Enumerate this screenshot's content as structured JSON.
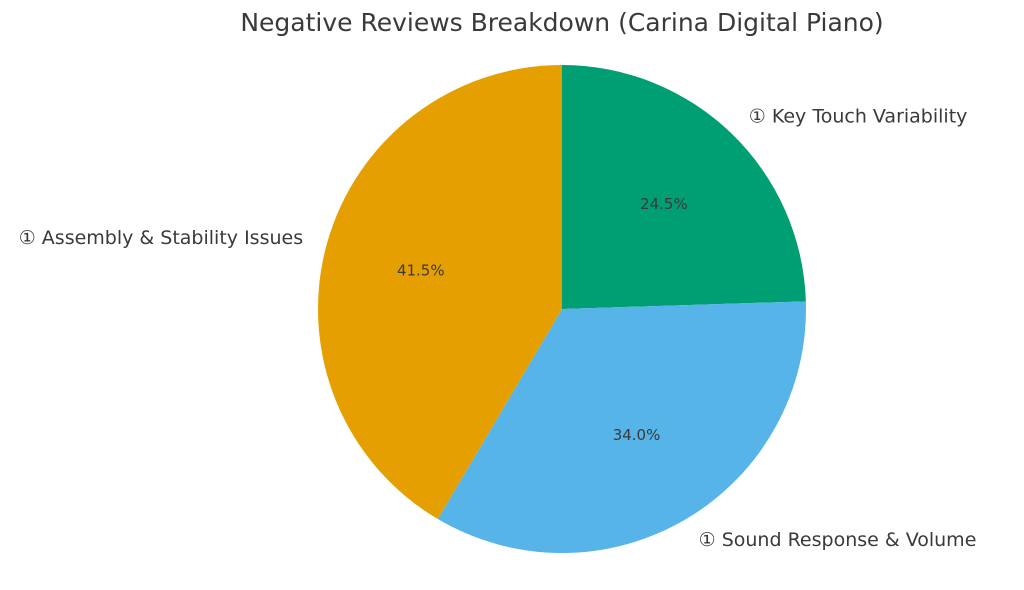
{
  "chart_data": {
    "type": "pie",
    "title": "Negative Reviews Breakdown (Carina Digital Piano)",
    "slices": [
      {
        "label": "① Key Touch Variability",
        "value": 24.5,
        "pct_label": "24.5%",
        "color": "#009E73"
      },
      {
        "label": "① Sound Response & Volume",
        "value": 34.0,
        "pct_label": "34.0%",
        "color": "#56B4E9"
      },
      {
        "label": "① Assembly & Stability Issues",
        "value": 41.5,
        "pct_label": "41.5%",
        "color": "#E69F00"
      }
    ],
    "start_angle": "12 o'clock",
    "direction": "clockwise"
  }
}
